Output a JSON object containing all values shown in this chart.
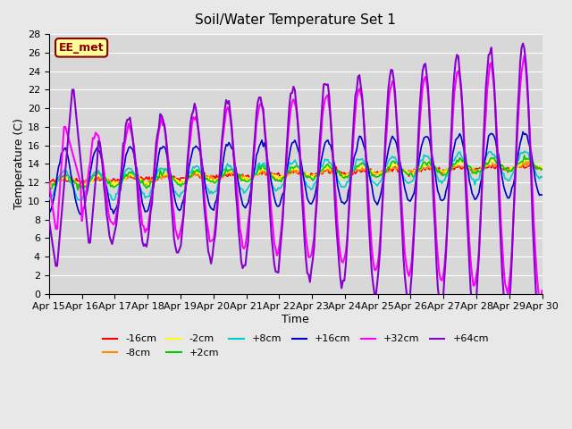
{
  "title": "Soil/Water Temperature Set 1",
  "xlabel": "Time",
  "ylabel": "Temperature (C)",
  "ylim": [
    0,
    28
  ],
  "yticks": [
    0,
    2,
    4,
    6,
    8,
    10,
    12,
    14,
    16,
    18,
    20,
    22,
    24,
    26,
    28
  ],
  "x_tick_labels": [
    "Apr 15",
    "Apr 16",
    "Apr 17",
    "Apr 18",
    "Apr 19",
    "Apr 20",
    "Apr 21",
    "Apr 22",
    "Apr 23",
    "Apr 24",
    "Apr 25",
    "Apr 26",
    "Apr 27",
    "Apr 28",
    "Apr 29",
    "Apr 30"
  ],
  "xtick_positions": [
    0,
    1,
    2,
    3,
    4,
    5,
    6,
    7,
    8,
    9,
    10,
    11,
    12,
    13,
    14,
    15
  ],
  "sensor_labels": [
    "-16cm",
    "-8cm",
    "-2cm",
    "+2cm",
    "+8cm",
    "+16cm",
    "+32cm",
    "+64cm"
  ],
  "sensor_colors": [
    "#ff0000",
    "#ff8800",
    "#ffff00",
    "#00cc00",
    "#00cccc",
    "#0000cc",
    "#ff00ff",
    "#8800cc"
  ],
  "background_color": "#e8e8e8",
  "plot_bg_color": "#d8d8d8",
  "grid_color": "#ffffff",
  "annotation_text": "EE_met",
  "annotation_bg": "#ffff99",
  "annotation_fg": "#880000"
}
